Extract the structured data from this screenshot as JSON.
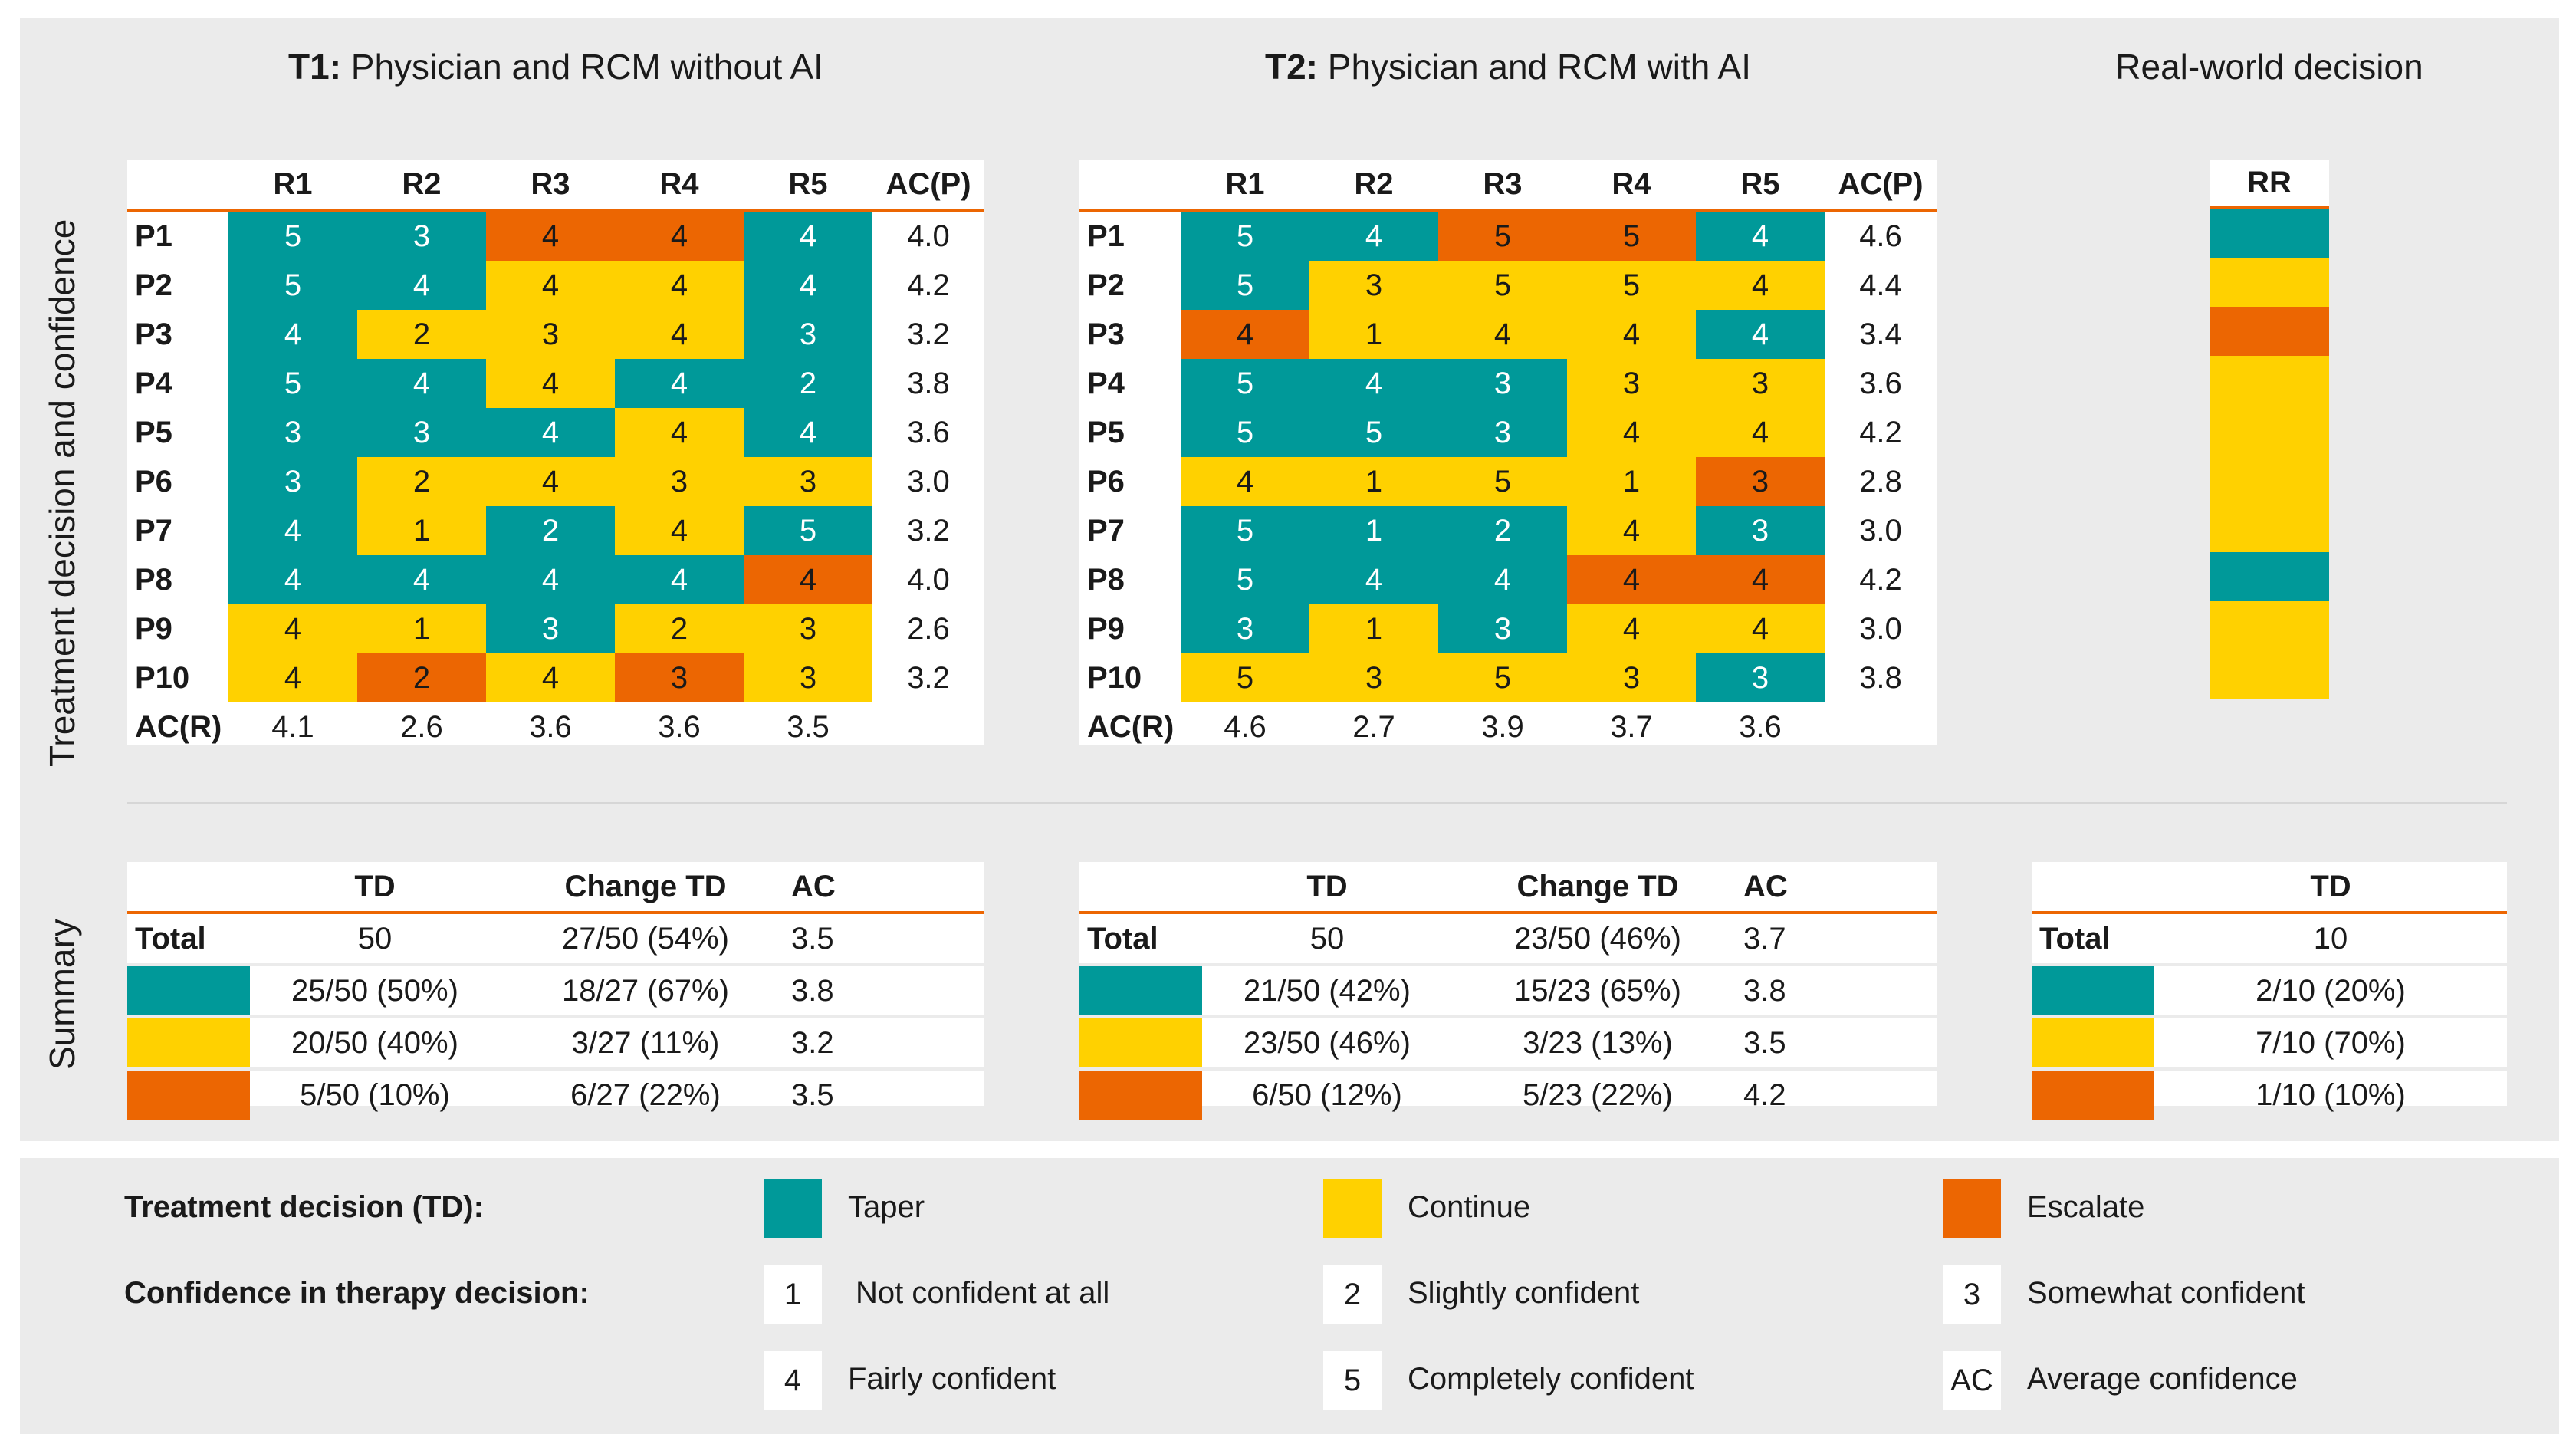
{
  "colors": {
    "taper": "#009999",
    "continue": "#ffd100",
    "escalate": "#ec6602",
    "panel": "#ebebeb",
    "accent_line": "#ec6602"
  },
  "titles": {
    "t1_bold": "T1:",
    "t1_rest": " Physician and RCM without AI",
    "t2_bold": "T2:",
    "t2_rest": " Physician and RCM with AI",
    "real": "Real-world decision"
  },
  "side_labels": {
    "top": "Treatment decision and confidence",
    "bottom": "Summary"
  },
  "grid_headers": [
    "R1",
    "R2",
    "R3",
    "R4",
    "R5",
    "AC(P)"
  ],
  "patients": [
    "P1",
    "P2",
    "P3",
    "P4",
    "P5",
    "P6",
    "P7",
    "P8",
    "P9",
    "P10"
  ],
  "acr_label": "AC(R)",
  "t1": {
    "values": [
      [
        "5",
        "3",
        "4",
        "4",
        "4"
      ],
      [
        "5",
        "4",
        "4",
        "4",
        "4"
      ],
      [
        "4",
        "2",
        "3",
        "4",
        "3"
      ],
      [
        "5",
        "4",
        "4",
        "4",
        "2"
      ],
      [
        "3",
        "3",
        "4",
        "4",
        "4"
      ],
      [
        "3",
        "2",
        "4",
        "3",
        "3"
      ],
      [
        "4",
        "1",
        "2",
        "4",
        "5"
      ],
      [
        "4",
        "4",
        "4",
        "4",
        "4"
      ],
      [
        "4",
        "1",
        "3",
        "2",
        "3"
      ],
      [
        "4",
        "2",
        "4",
        "3",
        "3"
      ]
    ],
    "decisions": [
      [
        "T",
        "T",
        "E",
        "E",
        "T"
      ],
      [
        "T",
        "T",
        "C",
        "C",
        "T"
      ],
      [
        "T",
        "C",
        "C",
        "C",
        "T"
      ],
      [
        "T",
        "T",
        "C",
        "T",
        "T"
      ],
      [
        "T",
        "T",
        "T",
        "C",
        "T"
      ],
      [
        "T",
        "C",
        "C",
        "C",
        "C"
      ],
      [
        "T",
        "C",
        "T",
        "C",
        "T"
      ],
      [
        "T",
        "T",
        "T",
        "T",
        "E"
      ],
      [
        "C",
        "C",
        "T",
        "C",
        "C"
      ],
      [
        "C",
        "E",
        "C",
        "E",
        "C"
      ]
    ],
    "acp": [
      "4.0",
      "4.2",
      "3.2",
      "3.8",
      "3.6",
      "3.0",
      "3.2",
      "4.0",
      "2.6",
      "3.2"
    ],
    "acr": [
      "4.1",
      "2.6",
      "3.6",
      "3.6",
      "3.5"
    ]
  },
  "t2": {
    "values": [
      [
        "5",
        "4",
        "5",
        "5",
        "4"
      ],
      [
        "5",
        "3",
        "5",
        "5",
        "4"
      ],
      [
        "4",
        "1",
        "4",
        "4",
        "4"
      ],
      [
        "5",
        "4",
        "3",
        "3",
        "3"
      ],
      [
        "5",
        "5",
        "3",
        "4",
        "4"
      ],
      [
        "4",
        "1",
        "5",
        "1",
        "3"
      ],
      [
        "5",
        "1",
        "2",
        "4",
        "3"
      ],
      [
        "5",
        "4",
        "4",
        "4",
        "4"
      ],
      [
        "3",
        "1",
        "3",
        "4",
        "4"
      ],
      [
        "5",
        "3",
        "5",
        "3",
        "3"
      ]
    ],
    "decisions": [
      [
        "T",
        "T",
        "E",
        "E",
        "T"
      ],
      [
        "T",
        "C",
        "C",
        "C",
        "C"
      ],
      [
        "E",
        "C",
        "C",
        "C",
        "T"
      ],
      [
        "T",
        "T",
        "T",
        "C",
        "C"
      ],
      [
        "T",
        "T",
        "T",
        "C",
        "C"
      ],
      [
        "C",
        "C",
        "C",
        "C",
        "E"
      ],
      [
        "T",
        "T",
        "T",
        "C",
        "T"
      ],
      [
        "T",
        "T",
        "T",
        "E",
        "E"
      ],
      [
        "T",
        "C",
        "T",
        "C",
        "C"
      ],
      [
        "C",
        "C",
        "C",
        "C",
        "T"
      ]
    ],
    "acp": [
      "4.6",
      "4.4",
      "3.4",
      "3.6",
      "4.2",
      "2.8",
      "3.0",
      "4.2",
      "3.0",
      "3.8"
    ],
    "acr": [
      "4.6",
      "2.7",
      "3.9",
      "3.7",
      "3.6"
    ]
  },
  "rr": {
    "header": "RR",
    "decisions": [
      "T",
      "C",
      "E",
      "C",
      "C",
      "C",
      "C",
      "T",
      "C",
      "C"
    ]
  },
  "summary": {
    "headers": [
      "TD",
      "Change TD",
      "AC"
    ],
    "total_label": "Total",
    "t1": {
      "total": [
        "50",
        "27/50 (54%)",
        "3.5"
      ],
      "taper": [
        "25/50 (50%)",
        "18/27 (67%)",
        "3.8"
      ],
      "continue": [
        "20/50 (40%)",
        "3/27 (11%)",
        "3.2"
      ],
      "escalate": [
        "5/50 (10%)",
        "6/27 (22%)",
        "3.5"
      ]
    },
    "t2": {
      "total": [
        "50",
        "23/50 (46%)",
        "3.7"
      ],
      "taper": [
        "21/50 (42%)",
        "15/23 (65%)",
        "3.8"
      ],
      "continue": [
        "23/50 (46%)",
        "3/23 (13%)",
        "3.5"
      ],
      "escalate": [
        "6/50 (12%)",
        "5/23 (22%)",
        "4.2"
      ]
    },
    "rr": {
      "header": "TD",
      "total": "10",
      "taper": "2/10 (20%)",
      "continue": "7/10 (70%)",
      "escalate": "1/10 (10%)"
    }
  },
  "legend": {
    "td_label": "Treatment decision (TD):",
    "conf_label": "Confidence in therapy decision:",
    "taper": "Taper",
    "continue": "Continue",
    "escalate": "Escalate",
    "conf": [
      {
        "key": "1",
        "text": "Not confident at all"
      },
      {
        "key": "2",
        "text": "Slightly confident"
      },
      {
        "key": "3",
        "text": "Somewhat confident"
      },
      {
        "key": "4",
        "text": "Fairly confident"
      },
      {
        "key": "5",
        "text": "Completely confident"
      },
      {
        "key": "AC",
        "text": "Average confidence"
      }
    ]
  }
}
